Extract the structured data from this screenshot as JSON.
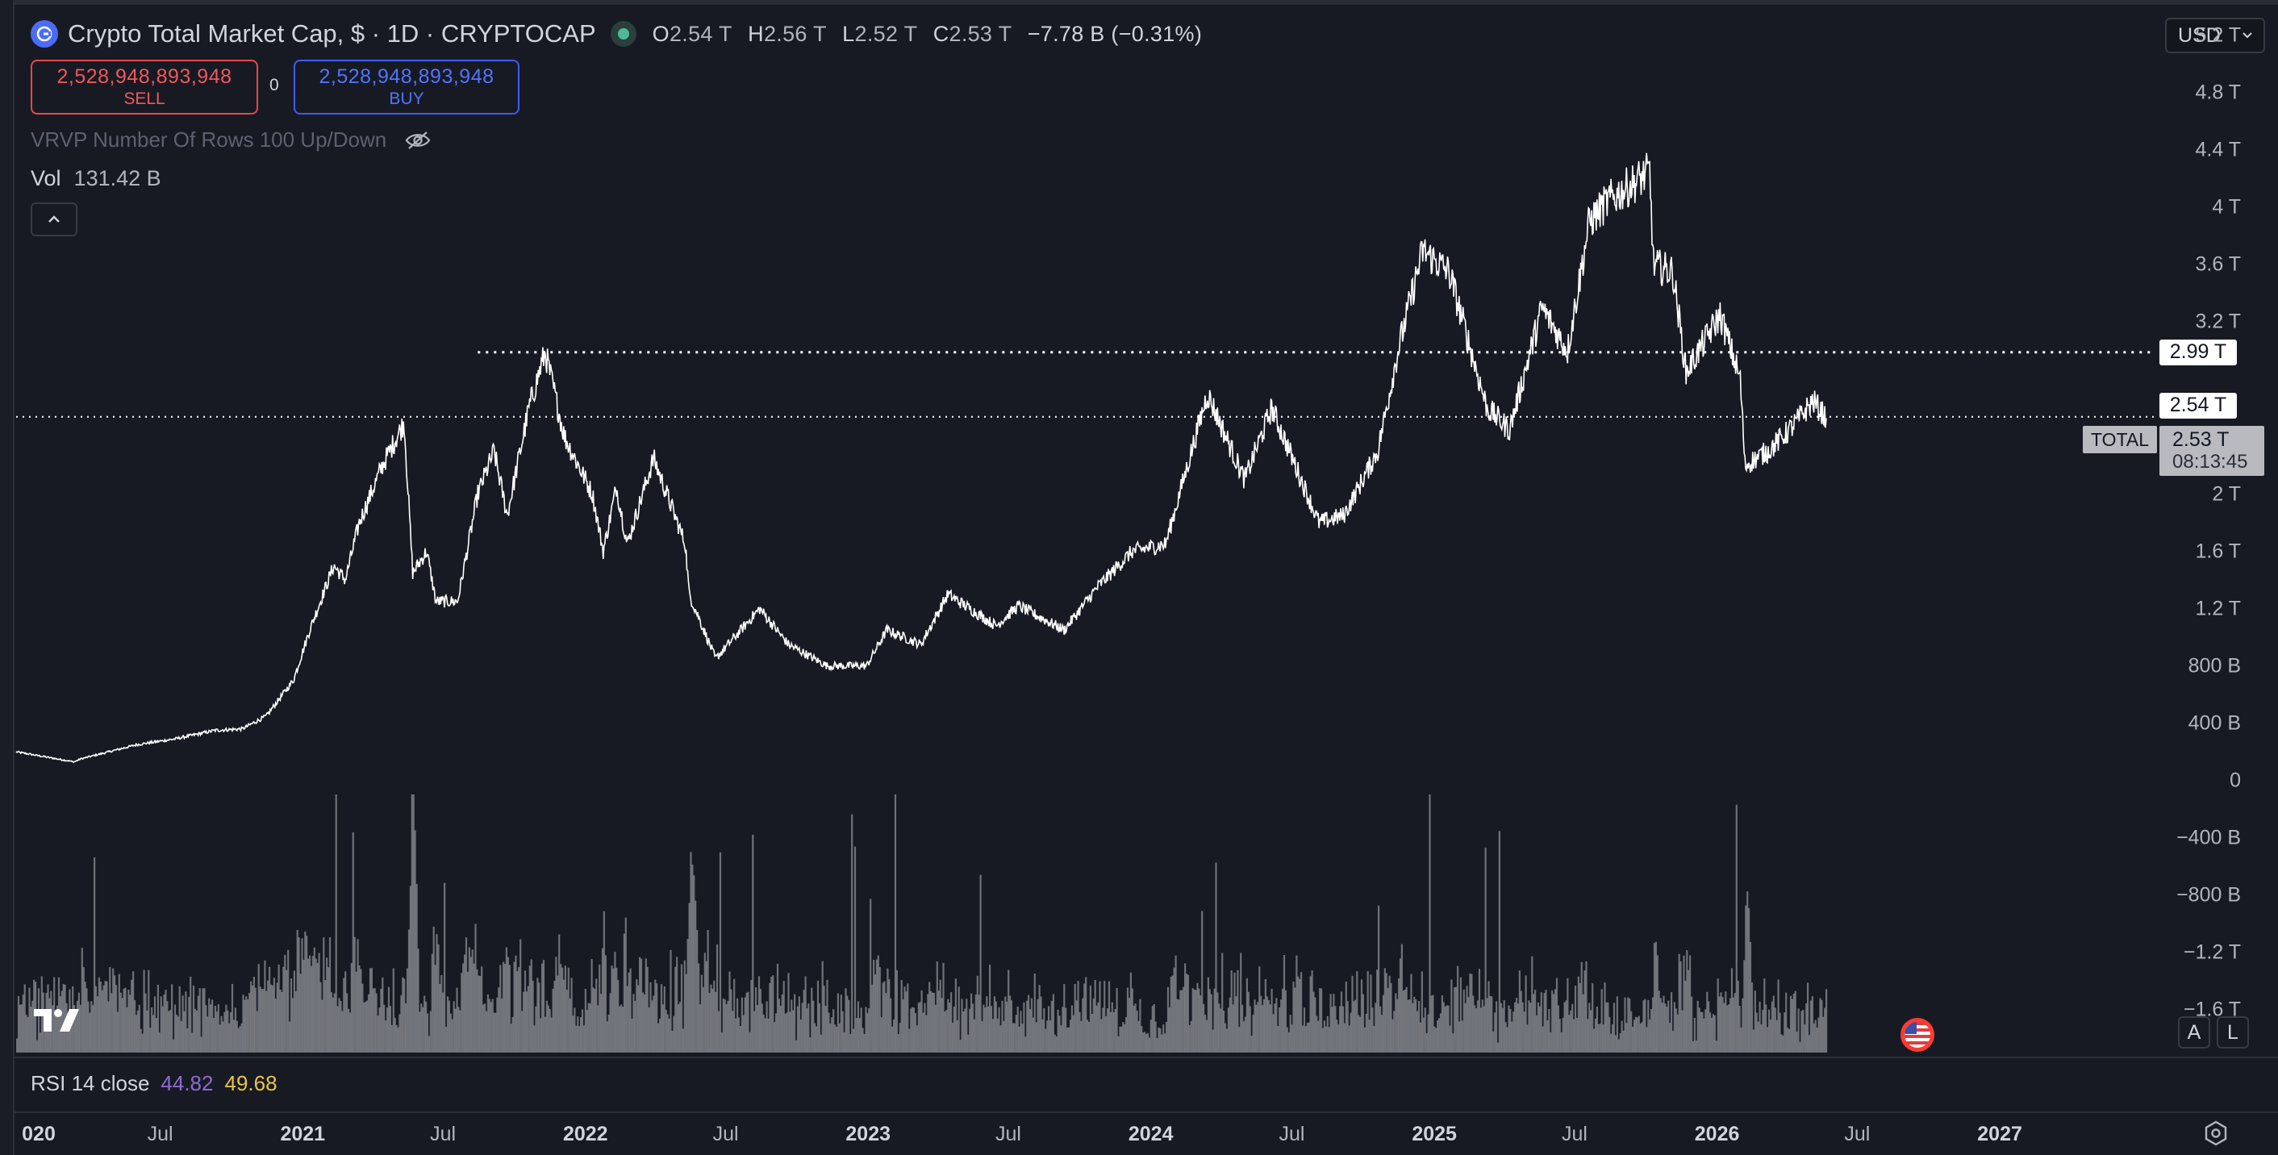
{
  "header": {
    "title": "Crypto Total Market Cap, $ · 1D · CRYPTOCAP",
    "ohlc": [
      {
        "key": "O",
        "value": "2.54 T"
      },
      {
        "key": "H",
        "value": "2.56 T"
      },
      {
        "key": "L",
        "value": "2.52 T"
      },
      {
        "key": "C",
        "value": "2.53 T"
      }
    ],
    "change": "−7.78 B (−0.31%)"
  },
  "trade": {
    "sell_price": "2,528,948,893,948",
    "sell_label": "SELL",
    "spread": "0",
    "buy_price": "2,528,948,893,948",
    "buy_label": "BUY"
  },
  "indicators": {
    "vrvp": "VRVP Number Of Rows 100 Up/Down",
    "vol_label": "Vol",
    "vol_value": "131.42 B",
    "rsi_label": "RSI 14 close",
    "rsi_value1": "44.82",
    "rsi_value2": "49.68"
  },
  "currency": "USD",
  "price_tags": {
    "line1": "2.99 T",
    "line2": "2.54 T",
    "symbol": "TOTAL",
    "current": "2.53 T",
    "countdown": "08:13:45"
  },
  "buttons": {
    "auto": "A",
    "log": "L"
  },
  "icons": [
    "symbol-logo-icon",
    "status-dot-icon",
    "eye-hidden-icon",
    "chevron-up-icon",
    "chevron-down-icon",
    "tradingview-logo-icon",
    "us-flag-icon",
    "gear-icon"
  ],
  "colors": {
    "background": "#181a23",
    "price_line": "#ffffff",
    "volume": "#8c8f96",
    "sell": "#f0575c",
    "buy": "#4f74ff",
    "rsi1": "#8e6bd1",
    "rsi2": "#e8c547"
  },
  "chart_data": {
    "type": "line",
    "title": "Crypto Total Market Cap, $ · 1D · CRYPTOCAP",
    "y_ticks": [
      "5.2 T",
      "4.8 T",
      "4.4 T",
      "4 T",
      "3.6 T",
      "3.2 T",
      "2 T",
      "1.6 T",
      "1.2 T",
      "800 B",
      "400 B",
      "0",
      "−400 B",
      "−800 B",
      "−1.2 T",
      "−1.6 T"
    ],
    "y_tick_values": [
      5.2,
      4.8,
      4.4,
      4.0,
      3.6,
      3.2,
      2.0,
      1.6,
      1.2,
      0.8,
      0.4,
      0,
      -0.4,
      -0.8,
      -1.2,
      -1.6
    ],
    "ylim": [
      -1.9,
      5.45
    ],
    "y_unit": "T",
    "x_ticks": [
      {
        "label": "020",
        "date": "2020-01-01",
        "bold": true
      },
      {
        "label": "Jul",
        "date": "2020-07-01",
        "bold": false
      },
      {
        "label": "2021",
        "date": "2021-01-01",
        "bold": true
      },
      {
        "label": "Jul",
        "date": "2021-07-01",
        "bold": false
      },
      {
        "label": "2022",
        "date": "2022-01-01",
        "bold": true
      },
      {
        "label": "Jul",
        "date": "2022-07-01",
        "bold": false
      },
      {
        "label": "2023",
        "date": "2023-01-01",
        "bold": true
      },
      {
        "label": "Jul",
        "date": "2023-07-01",
        "bold": false
      },
      {
        "label": "2024",
        "date": "2024-01-01",
        "bold": true
      },
      {
        "label": "Jul",
        "date": "2024-07-01",
        "bold": false
      },
      {
        "label": "2025",
        "date": "2025-01-01",
        "bold": true
      },
      {
        "label": "Jul",
        "date": "2025-07-01",
        "bold": false
      },
      {
        "label": "2026",
        "date": "2026-01-01",
        "bold": true
      },
      {
        "label": "Jul",
        "date": "2026-07-01",
        "bold": false
      },
      {
        "label": "2027",
        "date": "2027-01-01",
        "bold": true
      }
    ],
    "xlim": [
      "2019-12-28",
      "2027-06-28"
    ],
    "series": [
      {
        "values": [
          [
            "2019-12-28",
            0.2
          ],
          [
            "2020-03-12",
            0.13
          ],
          [
            "2020-03-20",
            0.15
          ],
          [
            "2020-06-01",
            0.25
          ],
          [
            "2020-07-20",
            0.29
          ],
          [
            "2020-09-10",
            0.35
          ],
          [
            "2020-10-15",
            0.36
          ],
          [
            "2020-11-15",
            0.45
          ],
          [
            "2020-12-20",
            0.7
          ],
          [
            "2021-01-10",
            1.05
          ],
          [
            "2021-02-10",
            1.5
          ],
          [
            "2021-02-25",
            1.4
          ],
          [
            "2021-03-15",
            1.8
          ],
          [
            "2021-04-14",
            2.2
          ],
          [
            "2021-05-12",
            2.5
          ],
          [
            "2021-05-23",
            1.45
          ],
          [
            "2021-06-10",
            1.6
          ],
          [
            "2021-06-22",
            1.25
          ],
          [
            "2021-07-20",
            1.25
          ],
          [
            "2021-08-15",
            2.0
          ],
          [
            "2021-09-05",
            2.3
          ],
          [
            "2021-09-22",
            1.85
          ],
          [
            "2021-10-20",
            2.6
          ],
          [
            "2021-11-10",
            2.99
          ],
          [
            "2021-12-05",
            2.4
          ],
          [
            "2022-01-10",
            2.0
          ],
          [
            "2022-01-24",
            1.6
          ],
          [
            "2022-02-10",
            2.05
          ],
          [
            "2022-02-24",
            1.65
          ],
          [
            "2022-03-30",
            2.25
          ],
          [
            "2022-05-10",
            1.65
          ],
          [
            "2022-05-15",
            1.3
          ],
          [
            "2022-06-18",
            0.85
          ],
          [
            "2022-08-14",
            1.2
          ],
          [
            "2022-09-20",
            0.95
          ],
          [
            "2022-11-09",
            0.8
          ],
          [
            "2022-12-30",
            0.8
          ],
          [
            "2023-01-25",
            1.05
          ],
          [
            "2023-03-10",
            0.95
          ],
          [
            "2023-04-14",
            1.3
          ],
          [
            "2023-06-15",
            1.08
          ],
          [
            "2023-07-14",
            1.22
          ],
          [
            "2023-09-11",
            1.05
          ],
          [
            "2023-10-24",
            1.35
          ],
          [
            "2023-12-08",
            1.6
          ],
          [
            "2024-01-20",
            1.65
          ],
          [
            "2024-03-14",
            2.7
          ],
          [
            "2024-05-01",
            2.1
          ],
          [
            "2024-06-05",
            2.6
          ],
          [
            "2024-08-05",
            1.8
          ],
          [
            "2024-09-06",
            1.85
          ],
          [
            "2024-10-20",
            2.3
          ],
          [
            "2024-11-15",
            3.0
          ],
          [
            "2024-12-17",
            3.7
          ],
          [
            "2025-01-20",
            3.55
          ],
          [
            "2025-03-10",
            2.6
          ],
          [
            "2025-04-08",
            2.45
          ],
          [
            "2025-05-20",
            3.3
          ],
          [
            "2025-06-22",
            3.0
          ],
          [
            "2025-07-20",
            3.9
          ],
          [
            "2025-08-14",
            4.05
          ],
          [
            "2025-10-06",
            4.25
          ],
          [
            "2025-10-11",
            3.6
          ],
          [
            "2025-11-05",
            3.55
          ],
          [
            "2025-11-22",
            2.85
          ],
          [
            "2026-01-05",
            3.25
          ],
          [
            "2026-01-31",
            2.8
          ],
          [
            "2026-02-06",
            2.2
          ],
          [
            "2026-03-08",
            2.3
          ],
          [
            "2026-04-05",
            2.45
          ],
          [
            "2026-05-05",
            2.65
          ],
          [
            "2026-05-22",
            2.53
          ]
        ]
      }
    ],
    "horizontal_lines": [
      {
        "value": 2.99,
        "from": "2021-08-15",
        "label": "2.99 T"
      },
      {
        "value": 2.54,
        "from": "2019-12-28",
        "label": "2.54 T"
      }
    ],
    "current_value": 2.53,
    "volume_note": "daily volume histogram shown as bars along the bottom of the price pane",
    "grid": false
  }
}
